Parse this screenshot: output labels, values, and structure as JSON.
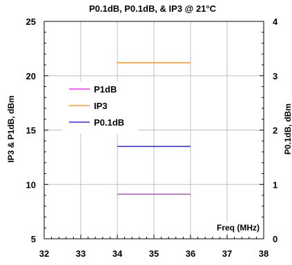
{
  "chart_data": {
    "type": "line",
    "title": "P0.1dB, P0.1dB, & IP3 @ 21°C",
    "xlabel": "Freq (MHz)",
    "ylabel_left": "IP3 & P1dB, dBm",
    "ylabel_right": "P0.1dB, dBm",
    "xlim": [
      32,
      38
    ],
    "ylim_left": [
      5,
      25
    ],
    "ylim_right": [
      0,
      4
    ],
    "x_ticks": [
      "32",
      "33",
      "34",
      "35",
      "36",
      "37",
      "38"
    ],
    "y_ticks_left": [
      "5",
      "10",
      "15",
      "20",
      "25"
    ],
    "y_ticks_right": [
      "0",
      "1",
      "2",
      "3",
      "4"
    ],
    "grid": true,
    "legend_position": "upper-left",
    "series": [
      {
        "name": "P1dB",
        "axis": "left",
        "color": "#ff00ff",
        "x": [
          34,
          36
        ],
        "y": [
          9.1,
          9.1
        ]
      },
      {
        "name": "IP3",
        "axis": "left",
        "color": "#ff7f00",
        "x": [
          34,
          36
        ],
        "y": [
          21.2,
          21.2
        ]
      },
      {
        "name": "P0.1dB",
        "axis": "right",
        "color": "#0000ff",
        "x": [
          34,
          36
        ],
        "y": [
          1.7,
          1.7
        ]
      }
    ]
  }
}
